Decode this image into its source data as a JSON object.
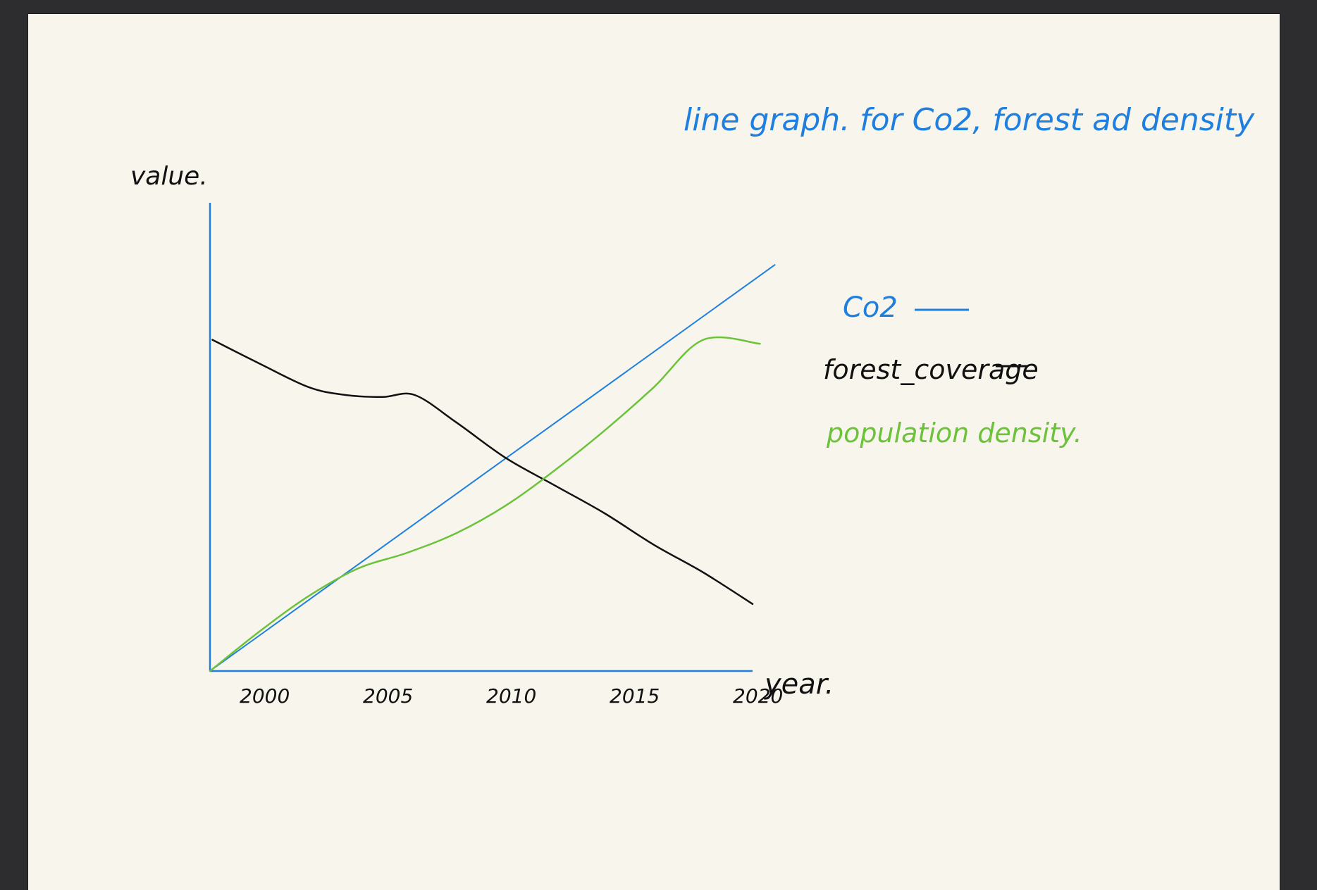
{
  "chart_data": {
    "type": "line",
    "title": "line graph. for Co2, forest ad density",
    "xlabel": "year.",
    "ylabel": "value.",
    "categories": [
      "2000",
      "2005",
      "2010",
      "2015",
      "2020"
    ],
    "x": [
      1998,
      2000,
      2002,
      2004,
      2005,
      2006,
      2008,
      2010,
      2012,
      2014,
      2016,
      2018,
      2020
    ],
    "xlim": [
      1998,
      2020
    ],
    "ylim": [
      0,
      100
    ],
    "series": [
      {
        "name": "Co2",
        "color": "#1e7fe0",
        "x": [
          1998,
          2020.9
        ],
        "values": [
          0,
          103
        ]
      },
      {
        "name": "forest_coverage",
        "color": "#111111",
        "x": [
          1998.1,
          2000,
          2002,
          2003.5,
          2005,
          2006.3,
          2008,
          2010,
          2012,
          2014,
          2016,
          2018,
          2020
        ],
        "values": [
          84,
          78,
          72,
          70,
          69.5,
          70,
          63,
          54,
          47,
          40,
          32,
          25,
          17
        ]
      },
      {
        "name": "population density",
        "color": "#6cc23a",
        "x": [
          1998,
          2000,
          2002,
          2004,
          2006,
          2008,
          2010,
          2012,
          2014,
          2016,
          2018,
          2020.3
        ],
        "values": [
          0,
          10,
          19,
          26,
          30,
          35,
          42,
          51,
          61,
          72,
          84,
          83
        ]
      }
    ],
    "legend": {
      "position": "right",
      "entries": [
        {
          "label": "Co2",
          "color": "#1e7fe0"
        },
        {
          "label": "forest_coverage",
          "color": "#111111"
        },
        {
          "label": "population density.",
          "color": "#6cc23a"
        }
      ]
    },
    "grid": false,
    "axis_color": "#1e7fe0"
  }
}
